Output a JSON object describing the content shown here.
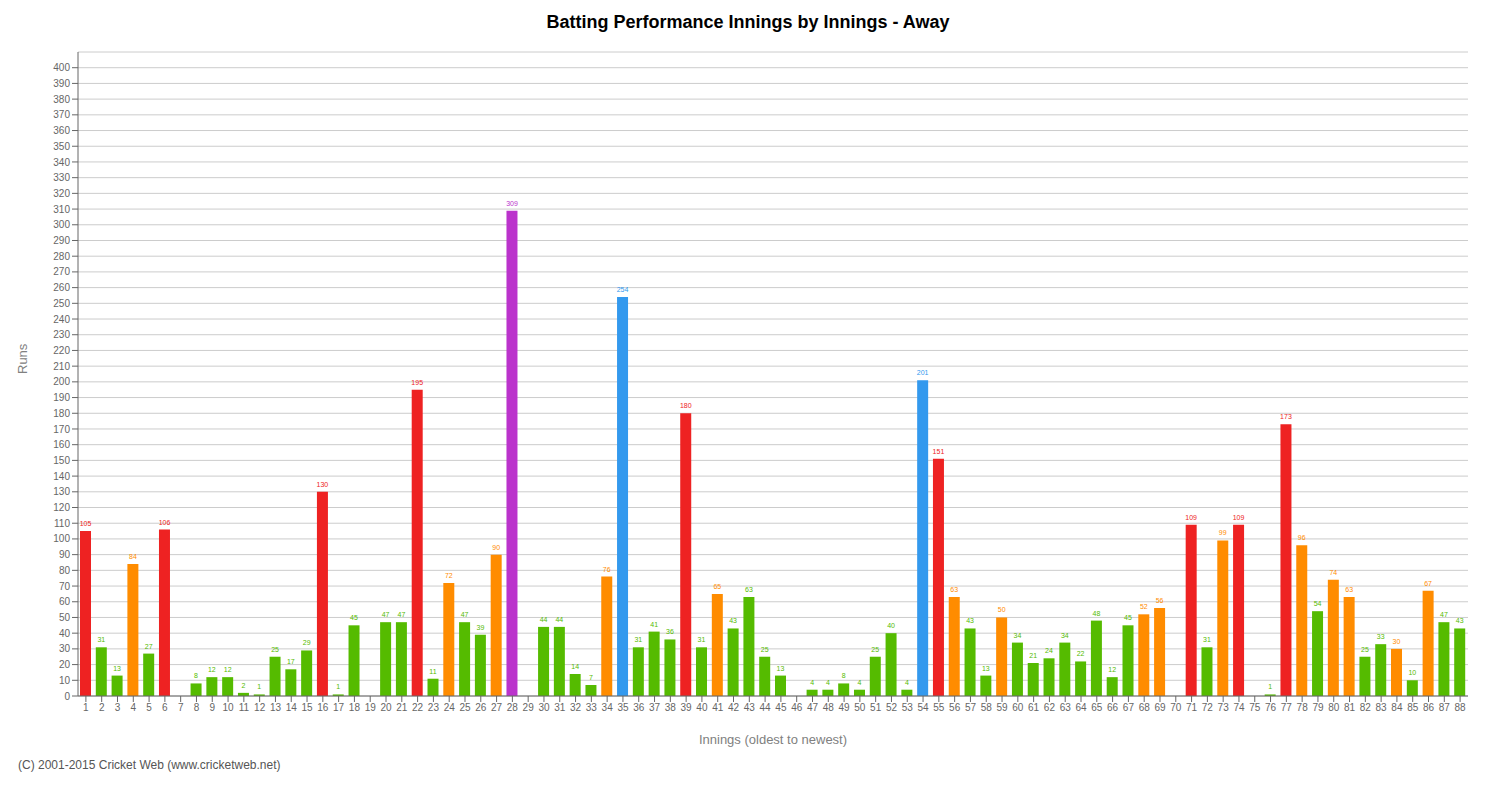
{
  "chart_data": {
    "type": "bar",
    "title": "Batting Performance Innings by Innings - Away",
    "xlabel": "Innings (oldest to newest)",
    "ylabel": "Runs",
    "annotations": [
      "(C) 2001-2015 Cricket Web (www.cricketweb.net)"
    ],
    "categories": [
      "1",
      "2",
      "3",
      "4",
      "5",
      "6",
      "7",
      "8",
      "9",
      "10",
      "11",
      "12",
      "13",
      "14",
      "15",
      "16",
      "17",
      "18",
      "19",
      "20",
      "21",
      "22",
      "23",
      "24",
      "25",
      "26",
      "27",
      "28",
      "29",
      "30",
      "31",
      "32",
      "33",
      "34",
      "35",
      "36",
      "37",
      "38",
      "39",
      "40",
      "41",
      "42",
      "43",
      "44",
      "45",
      "46",
      "47",
      "48",
      "49",
      "50",
      "51",
      "52",
      "53",
      "54",
      "55",
      "56",
      "57",
      "58",
      "59",
      "60",
      "61",
      "62",
      "63",
      "64",
      "65",
      "66",
      "67",
      "68",
      "69",
      "70",
      "71",
      "72",
      "73",
      "74",
      "75",
      "76",
      "77",
      "78",
      "79",
      "80",
      "81",
      "82",
      "83",
      "84",
      "85",
      "86",
      "87",
      "88"
    ],
    "values": [
      105,
      31,
      13,
      84,
      27,
      106,
      0,
      8,
      12,
      12,
      2,
      1,
      25,
      17,
      29,
      130,
      1,
      45,
      0,
      47,
      47,
      195,
      11,
      72,
      47,
      39,
      90,
      309,
      0,
      44,
      44,
      14,
      7,
      76,
      254,
      31,
      41,
      36,
      180,
      31,
      65,
      43,
      63,
      25,
      13,
      0,
      4,
      4,
      8,
      4,
      25,
      40,
      4,
      201,
      151,
      63,
      43,
      13,
      50,
      34,
      21,
      24,
      34,
      22,
      48,
      12,
      45,
      52,
      56,
      0,
      109,
      31,
      99,
      109,
      0,
      1,
      173,
      96,
      54,
      74,
      63,
      25,
      33,
      30,
      10,
      67,
      47,
      43
    ],
    "colors": [
      "#EE2222",
      "#55BB00",
      "#55BB00",
      "#FF8C00",
      "#55BB00",
      "#EE2222",
      "#55BB00",
      "#55BB00",
      "#55BB00",
      "#55BB00",
      "#55BB00",
      "#55BB00",
      "#55BB00",
      "#55BB00",
      "#55BB00",
      "#EE2222",
      "#55BB00",
      "#55BB00",
      "#55BB00",
      "#55BB00",
      "#55BB00",
      "#EE2222",
      "#55BB00",
      "#FF8C00",
      "#55BB00",
      "#55BB00",
      "#FF8C00",
      "#BB33CC",
      "#55BB00",
      "#55BB00",
      "#55BB00",
      "#55BB00",
      "#55BB00",
      "#FF8C00",
      "#3399EE",
      "#55BB00",
      "#55BB00",
      "#55BB00",
      "#EE2222",
      "#55BB00",
      "#FF8C00",
      "#55BB00",
      "#55BB00",
      "#55BB00",
      "#55BB00",
      "#55BB00",
      "#55BB00",
      "#55BB00",
      "#55BB00",
      "#55BB00",
      "#55BB00",
      "#55BB00",
      "#55BB00",
      "#3399EE",
      "#EE2222",
      "#FF8C00",
      "#55BB00",
      "#55BB00",
      "#FF8C00",
      "#55BB00",
      "#55BB00",
      "#55BB00",
      "#55BB00",
      "#55BB00",
      "#55BB00",
      "#55BB00",
      "#55BB00",
      "#FF8C00",
      "#FF8C00",
      "#55BB00",
      "#EE2222",
      "#55BB00",
      "#FF8C00",
      "#EE2222",
      "#55BB00",
      "#55BB00",
      "#EE2222",
      "#FF8C00",
      "#55BB00",
      "#FF8C00",
      "#FF8C00",
      "#55BB00",
      "#55BB00",
      "#FF8C00",
      "#55BB00",
      "#FF8C00",
      "#55BB00",
      "#55BB00"
    ],
    "ylim": [
      0,
      410
    ],
    "yticks": [
      0,
      10,
      20,
      30,
      40,
      50,
      60,
      70,
      80,
      90,
      100,
      110,
      120,
      130,
      140,
      150,
      160,
      170,
      180,
      190,
      200,
      210,
      220,
      230,
      240,
      250,
      260,
      270,
      280,
      290,
      300,
      310,
      320,
      330,
      340,
      350,
      360,
      370,
      380,
      390,
      400
    ],
    "grid": true,
    "data_labels": true
  }
}
